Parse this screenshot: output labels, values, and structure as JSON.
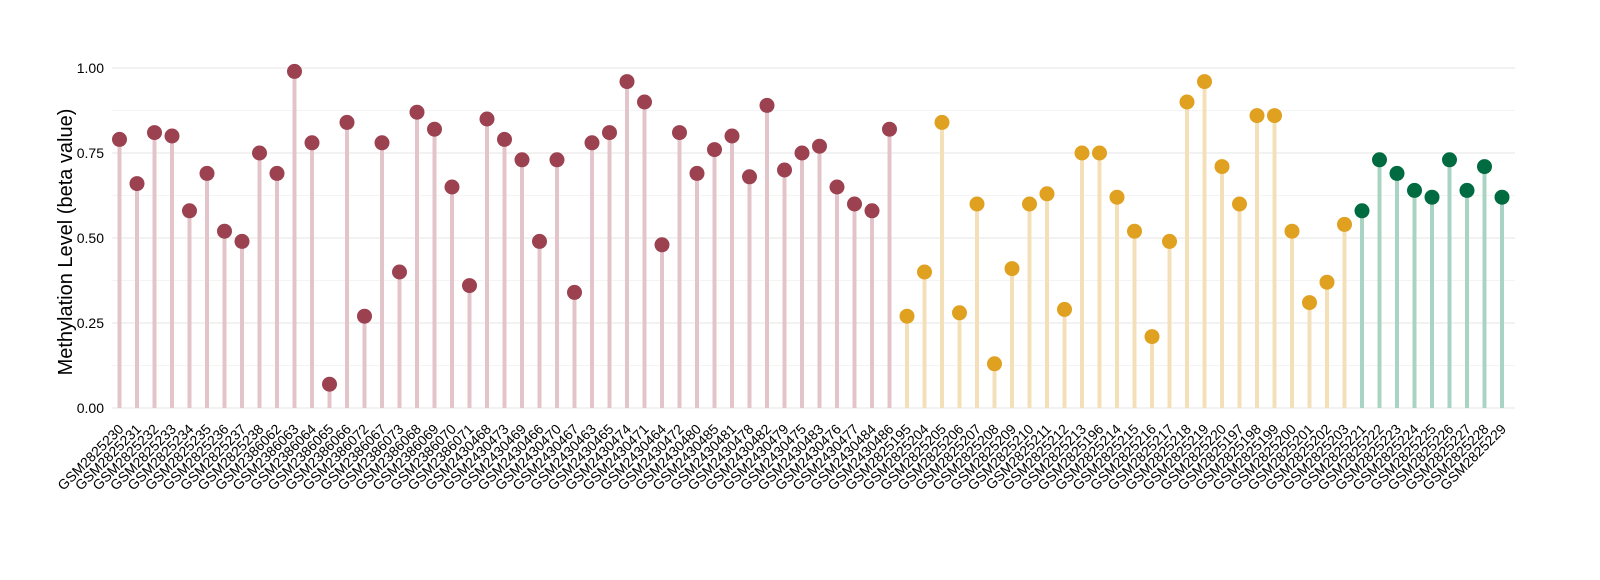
{
  "chart_data": {
    "type": "lollipop",
    "title": "",
    "xlabel": "",
    "ylabel": "Methylation Level (beta value)",
    "ylim": [
      0,
      1.0
    ],
    "yticks": [
      "0.00",
      "0.25",
      "0.50",
      "0.75",
      "1.00"
    ],
    "ytick_values": [
      0,
      0.25,
      0.5,
      0.75,
      1.0
    ],
    "grid": true,
    "legend": "none",
    "group_colors": {
      "red": {
        "point": "#9b4150",
        "stem": "#e3c4ca"
      },
      "orange": {
        "point": "#e0a020",
        "stem": "#f4e0b8"
      },
      "green": {
        "point": "#006b40",
        "stem": "#a9d4c3"
      }
    },
    "points": [
      {
        "label": "GSM2825230",
        "value": 0.79,
        "group": "red"
      },
      {
        "label": "GSM2825231",
        "value": 0.66,
        "group": "red"
      },
      {
        "label": "GSM2825232",
        "value": 0.81,
        "group": "red"
      },
      {
        "label": "GSM2825233",
        "value": 0.8,
        "group": "red"
      },
      {
        "label": "GSM2825234",
        "value": 0.58,
        "group": "red"
      },
      {
        "label": "GSM2825235",
        "value": 0.69,
        "group": "red"
      },
      {
        "label": "GSM2825236",
        "value": 0.52,
        "group": "red"
      },
      {
        "label": "GSM2825237",
        "value": 0.49,
        "group": "red"
      },
      {
        "label": "GSM2825238",
        "value": 0.75,
        "group": "red"
      },
      {
        "label": "GSM2386062",
        "value": 0.69,
        "group": "red"
      },
      {
        "label": "GSM2386063",
        "value": 0.99,
        "group": "red"
      },
      {
        "label": "GSM2386064",
        "value": 0.78,
        "group": "red"
      },
      {
        "label": "GSM2386065",
        "value": 0.07,
        "group": "red"
      },
      {
        "label": "GSM2386066",
        "value": 0.84,
        "group": "red"
      },
      {
        "label": "GSM2386072",
        "value": 0.27,
        "group": "red"
      },
      {
        "label": "GSM2386067",
        "value": 0.78,
        "group": "red"
      },
      {
        "label": "GSM2386073",
        "value": 0.4,
        "group": "red"
      },
      {
        "label": "GSM2386068",
        "value": 0.87,
        "group": "red"
      },
      {
        "label": "GSM2386069",
        "value": 0.82,
        "group": "red"
      },
      {
        "label": "GSM2386070",
        "value": 0.65,
        "group": "red"
      },
      {
        "label": "GSM2386071",
        "value": 0.36,
        "group": "red"
      },
      {
        "label": "GSM2430468",
        "value": 0.85,
        "group": "red"
      },
      {
        "label": "GSM2430473",
        "value": 0.79,
        "group": "red"
      },
      {
        "label": "GSM2430469",
        "value": 0.73,
        "group": "red"
      },
      {
        "label": "GSM2430466",
        "value": 0.49,
        "group": "red"
      },
      {
        "label": "GSM2430470",
        "value": 0.73,
        "group": "red"
      },
      {
        "label": "GSM2430467",
        "value": 0.34,
        "group": "red"
      },
      {
        "label": "GSM2430463",
        "value": 0.78,
        "group": "red"
      },
      {
        "label": "GSM2430465",
        "value": 0.81,
        "group": "red"
      },
      {
        "label": "GSM2430474",
        "value": 0.96,
        "group": "red"
      },
      {
        "label": "GSM2430471",
        "value": 0.9,
        "group": "red"
      },
      {
        "label": "GSM2430464",
        "value": 0.48,
        "group": "red"
      },
      {
        "label": "GSM2430472",
        "value": 0.81,
        "group": "red"
      },
      {
        "label": "GSM2430480",
        "value": 0.69,
        "group": "red"
      },
      {
        "label": "GSM2430485",
        "value": 0.76,
        "group": "red"
      },
      {
        "label": "GSM2430481",
        "value": 0.8,
        "group": "red"
      },
      {
        "label": "GSM2430478",
        "value": 0.68,
        "group": "red"
      },
      {
        "label": "GSM2430482",
        "value": 0.89,
        "group": "red"
      },
      {
        "label": "GSM2430479",
        "value": 0.7,
        "group": "red"
      },
      {
        "label": "GSM2430475",
        "value": 0.75,
        "group": "red"
      },
      {
        "label": "GSM2430483",
        "value": 0.77,
        "group": "red"
      },
      {
        "label": "GSM2430476",
        "value": 0.65,
        "group": "red"
      },
      {
        "label": "GSM2430477",
        "value": 0.6,
        "group": "red"
      },
      {
        "label": "GSM2430484",
        "value": 0.58,
        "group": "red"
      },
      {
        "label": "GSM2430486",
        "value": 0.82,
        "group": "red"
      },
      {
        "label": "GSM2825195",
        "value": 0.27,
        "group": "orange"
      },
      {
        "label": "GSM2825204",
        "value": 0.4,
        "group": "orange"
      },
      {
        "label": "GSM2825205",
        "value": 0.84,
        "group": "orange"
      },
      {
        "label": "GSM2825206",
        "value": 0.28,
        "group": "orange"
      },
      {
        "label": "GSM2825207",
        "value": 0.6,
        "group": "orange"
      },
      {
        "label": "GSM2825208",
        "value": 0.13,
        "group": "orange"
      },
      {
        "label": "GSM2825209",
        "value": 0.41,
        "group": "orange"
      },
      {
        "label": "GSM2825210",
        "value": 0.6,
        "group": "orange"
      },
      {
        "label": "GSM2825211",
        "value": 0.63,
        "group": "orange"
      },
      {
        "label": "GSM2825212",
        "value": 0.29,
        "group": "orange"
      },
      {
        "label": "GSM2825213",
        "value": 0.75,
        "group": "orange"
      },
      {
        "label": "GSM2825196",
        "value": 0.75,
        "group": "orange"
      },
      {
        "label": "GSM2825214",
        "value": 0.62,
        "group": "orange"
      },
      {
        "label": "GSM2825215",
        "value": 0.52,
        "group": "orange"
      },
      {
        "label": "GSM2825216",
        "value": 0.21,
        "group": "orange"
      },
      {
        "label": "GSM2825217",
        "value": 0.49,
        "group": "orange"
      },
      {
        "label": "GSM2825218",
        "value": 0.9,
        "group": "orange"
      },
      {
        "label": "GSM2825219",
        "value": 0.96,
        "group": "orange"
      },
      {
        "label": "GSM2825220",
        "value": 0.71,
        "group": "orange"
      },
      {
        "label": "GSM2825197",
        "value": 0.6,
        "group": "orange"
      },
      {
        "label": "GSM2825198",
        "value": 0.86,
        "group": "orange"
      },
      {
        "label": "GSM2825199",
        "value": 0.86,
        "group": "orange"
      },
      {
        "label": "GSM2825200",
        "value": 0.52,
        "group": "orange"
      },
      {
        "label": "GSM2825201",
        "value": 0.31,
        "group": "orange"
      },
      {
        "label": "GSM2825202",
        "value": 0.37,
        "group": "orange"
      },
      {
        "label": "GSM2825203",
        "value": 0.54,
        "group": "orange"
      },
      {
        "label": "GSM2825221",
        "value": 0.58,
        "group": "green"
      },
      {
        "label": "GSM2825222",
        "value": 0.73,
        "group": "green"
      },
      {
        "label": "GSM2825223",
        "value": 0.69,
        "group": "green"
      },
      {
        "label": "GSM2825224",
        "value": 0.64,
        "group": "green"
      },
      {
        "label": "GSM2825225",
        "value": 0.62,
        "group": "green"
      },
      {
        "label": "GSM2825226",
        "value": 0.73,
        "group": "green"
      },
      {
        "label": "GSM2825227",
        "value": 0.64,
        "group": "green"
      },
      {
        "label": "GSM2825228",
        "value": 0.71,
        "group": "green"
      },
      {
        "label": "GSM2825229",
        "value": 0.62,
        "group": "green"
      }
    ]
  }
}
